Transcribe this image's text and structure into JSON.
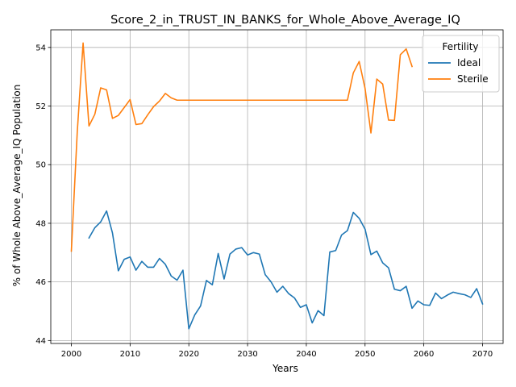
{
  "chart_data": {
    "type": "line",
    "title": "Score_2_in_TRUST_IN_BANKS_for_Whole_Above_Average_IQ",
    "xlabel": "Years",
    "ylabel": "% of Whole Above_Average_IQ Population",
    "xlim": [
      1996.5,
      2073.5
    ],
    "ylim": [
      43.9,
      54.6
    ],
    "xticks": [
      2000,
      2010,
      2020,
      2030,
      2040,
      2050,
      2060,
      2070
    ],
    "yticks": [
      44,
      46,
      48,
      50,
      52,
      54
    ],
    "grid": true,
    "legend": {
      "title": "Fertility",
      "placement": "top-right"
    },
    "series": [
      {
        "name": "Ideal",
        "color": "#1f77b4",
        "x": [
          2003,
          2004,
          2005,
          2006,
          2007,
          2008,
          2009,
          2010,
          2011,
          2012,
          2013,
          2014,
          2015,
          2016,
          2017,
          2018,
          2019,
          2020,
          2021,
          2022,
          2023,
          2024,
          2025,
          2026,
          2027,
          2028,
          2029,
          2030,
          2031,
          2032,
          2033,
          2034,
          2035,
          2036,
          2037,
          2038,
          2039,
          2040,
          2041,
          2042,
          2043,
          2044,
          2045,
          2046,
          2047,
          2048,
          2049,
          2050,
          2051,
          2052,
          2053,
          2054,
          2055,
          2056,
          2057,
          2058,
          2059,
          2060,
          2061,
          2062,
          2063,
          2064,
          2065,
          2066,
          2067,
          2068,
          2069,
          2070
        ],
        "values": [
          47.5,
          47.85,
          48.05,
          48.42,
          47.67,
          46.38,
          46.77,
          46.85,
          46.4,
          46.7,
          46.5,
          46.5,
          46.8,
          46.6,
          46.2,
          46.06,
          46.4,
          44.4,
          44.87,
          45.18,
          46.05,
          45.9,
          46.97,
          46.1,
          46.95,
          47.12,
          47.17,
          46.92,
          47.0,
          46.95,
          46.25,
          46.0,
          45.65,
          45.85,
          45.6,
          45.45,
          45.13,
          45.22,
          44.6,
          45.02,
          44.85,
          47.02,
          47.07,
          47.6,
          47.75,
          48.37,
          48.17,
          47.8,
          46.93,
          47.05,
          46.65,
          46.48,
          45.75,
          45.7,
          45.85,
          45.1,
          45.35,
          45.22,
          45.2,
          45.62,
          45.43,
          45.55,
          45.65,
          45.6,
          45.56,
          45.47,
          45.77,
          45.25
        ]
      },
      {
        "name": "Sterile",
        "color": "#ff7f0e",
        "x": [
          2000,
          2001,
          2002,
          2003,
          2004,
          2005,
          2006,
          2007,
          2008,
          2009,
          2010,
          2011,
          2012,
          2013,
          2014,
          2015,
          2016,
          2017,
          2018,
          2019,
          2020,
          2021,
          2022,
          2023,
          2024,
          2025,
          2026,
          2027,
          2028,
          2029,
          2030,
          2031,
          2032,
          2033,
          2034,
          2035,
          2036,
          2037,
          2038,
          2039,
          2040,
          2041,
          2042,
          2043,
          2044,
          2045,
          2046,
          2047,
          2048,
          2049,
          2050,
          2051,
          2052,
          2053,
          2054,
          2055,
          2056,
          2057,
          2058
        ],
        "values": [
          47.05,
          51.1,
          54.15,
          51.32,
          51.72,
          52.62,
          52.55,
          51.58,
          51.68,
          51.95,
          52.22,
          51.37,
          51.4,
          51.7,
          51.98,
          52.17,
          52.43,
          52.28,
          52.2,
          52.2,
          52.2,
          52.2,
          52.2,
          52.2,
          52.2,
          52.2,
          52.2,
          52.2,
          52.2,
          52.2,
          52.2,
          52.2,
          52.2,
          52.2,
          52.2,
          52.2,
          52.2,
          52.2,
          52.2,
          52.2,
          52.2,
          52.2,
          52.2,
          52.2,
          52.2,
          52.2,
          52.2,
          52.2,
          53.13,
          53.52,
          52.6,
          51.08,
          52.92,
          52.75,
          51.52,
          51.51,
          53.75,
          53.95,
          53.35
        ]
      }
    ]
  }
}
